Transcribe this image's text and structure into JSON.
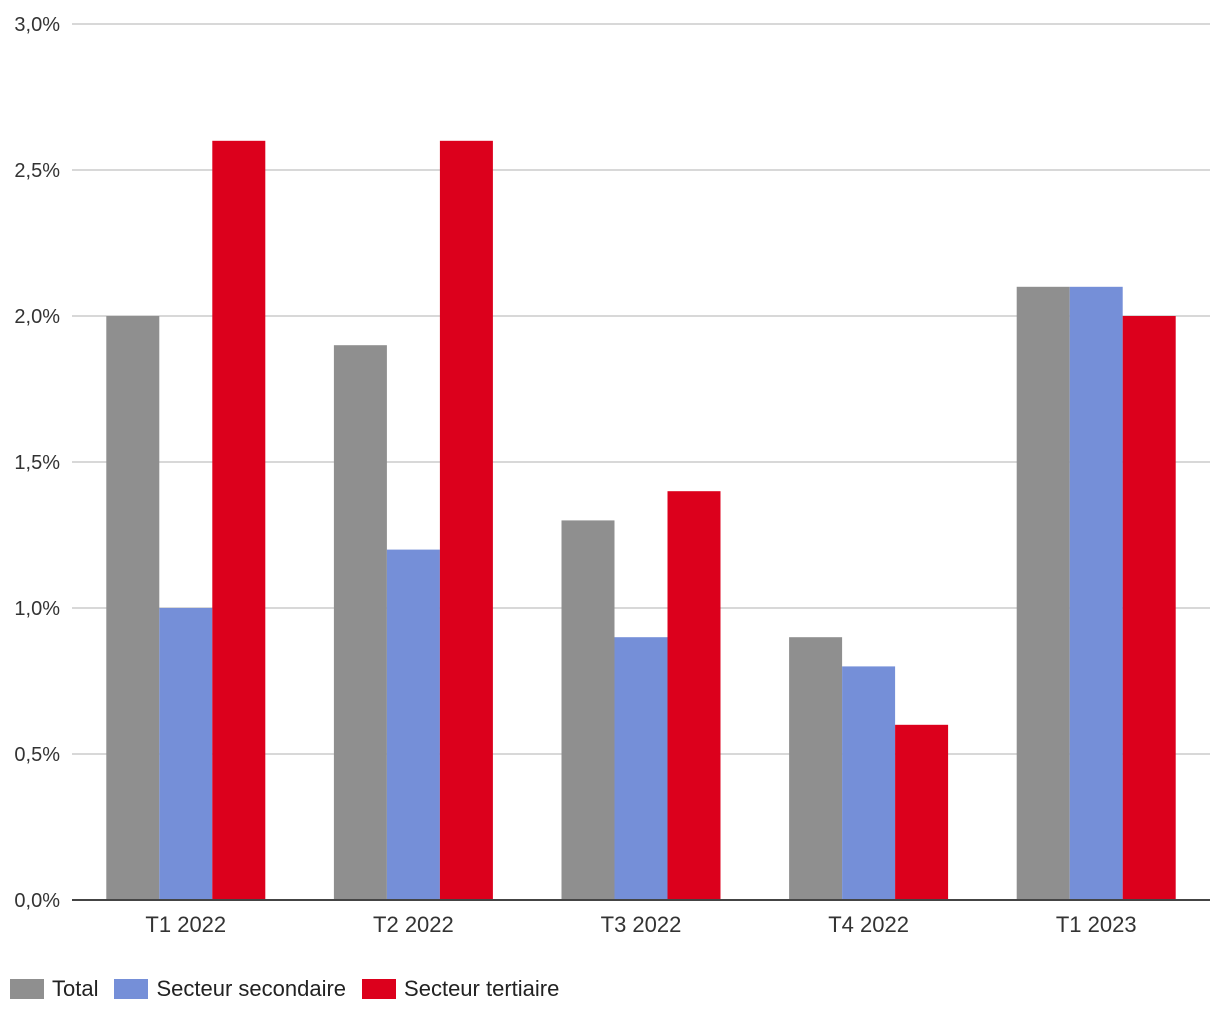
{
  "chart_data": {
    "type": "bar",
    "title": "",
    "xlabel": "",
    "ylabel": "",
    "categories": [
      "T1 2022",
      "T2 2022",
      "T3 2022",
      "T4 2022",
      "T1 2023"
    ],
    "series": [
      {
        "name": "Total",
        "color": "#8f8f8f",
        "values": [
          2.0,
          1.9,
          1.3,
          0.9,
          2.1
        ]
      },
      {
        "name": "Secteur secondaire",
        "color": "#758fd8",
        "values": [
          1.0,
          1.2,
          0.9,
          0.8,
          2.1
        ]
      },
      {
        "name": "Secteur tertiaire",
        "color": "#dc001c",
        "values": [
          2.6,
          2.6,
          1.4,
          0.6,
          2.0
        ]
      }
    ],
    "ylim": [
      0,
      3.0
    ],
    "yticks": [
      0.0,
      0.5,
      1.0,
      1.5,
      2.0,
      2.5,
      3.0
    ],
    "ytick_labels": [
      "0,0%",
      "0,5%",
      "1,0%",
      "1,5%",
      "2,0%",
      "2,5%",
      "3,0%"
    ],
    "grid": true,
    "legend_position": "bottom-left"
  }
}
